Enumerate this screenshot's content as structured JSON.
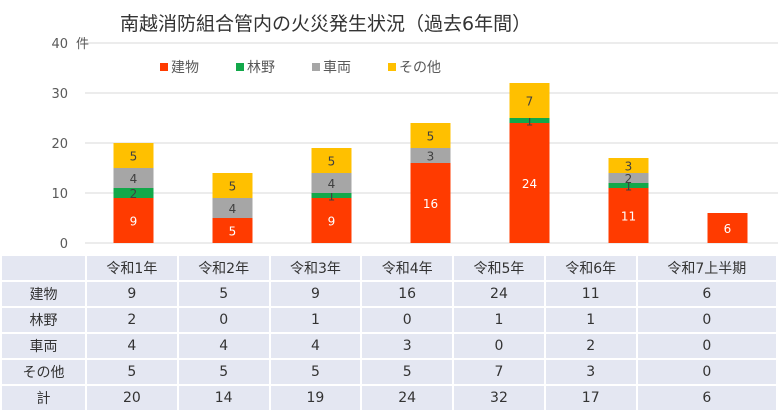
{
  "chart_data": {
    "type": "bar",
    "stacked": true,
    "title": "南越消防組合管内の火災発生状況（過去6年間）",
    "ylabel": "件",
    "ylim": [
      0,
      40
    ],
    "yticks": [
      "0",
      "10",
      "20",
      "30",
      "40"
    ],
    "grid": true,
    "legend_position": "top-left",
    "categories": [
      "令和1年",
      "令和2年",
      "令和3年",
      "令和4年",
      "令和5年",
      "令和6年",
      "令和7上半期"
    ],
    "series": [
      {
        "name": "建物",
        "color": "#ff3b00",
        "label_color": "#ffffff",
        "values": [
          9,
          5,
          9,
          16,
          24,
          11,
          6
        ]
      },
      {
        "name": "林野",
        "color": "#12a84a",
        "label_color": "#404040",
        "values": [
          2,
          0,
          1,
          0,
          1,
          1,
          0
        ]
      },
      {
        "name": "車両",
        "color": "#a6a6a6",
        "label_color": "#404040",
        "values": [
          4,
          4,
          4,
          3,
          0,
          2,
          0
        ]
      },
      {
        "name": "その他",
        "color": "#ffc000",
        "label_color": "#404040",
        "values": [
          5,
          5,
          5,
          5,
          7,
          3,
          0
        ]
      }
    ],
    "totals_label": "計",
    "totals": [
      20,
      14,
      19,
      24,
      32,
      17,
      6
    ]
  }
}
